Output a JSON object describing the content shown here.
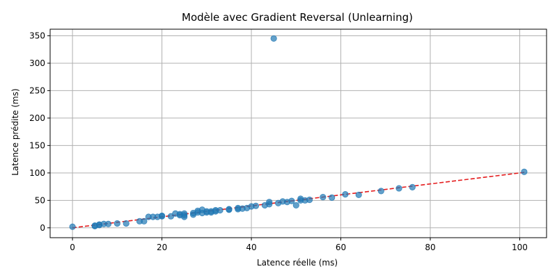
{
  "chart_data": {
    "type": "scatter",
    "title": "Modèle avec Gradient Reversal (Unlearning)",
    "xlabel": "Latence réelle (ms)",
    "ylabel": "Latence prédite (ms)",
    "xlim": [
      -5,
      106
    ],
    "ylim": [
      -18,
      362
    ],
    "xticks": [
      0,
      20,
      40,
      60,
      80,
      100
    ],
    "yticks": [
      0,
      50,
      100,
      150,
      200,
      250,
      300,
      350
    ],
    "grid": true,
    "point_color": "#1f77b4",
    "reference_line": {
      "x": [
        0,
        101
      ],
      "y": [
        0,
        101
      ],
      "color": "#e41a1c",
      "style": "dashed"
    },
    "points": [
      [
        0,
        2
      ],
      [
        5,
        4
      ],
      [
        5,
        3
      ],
      [
        6,
        5
      ],
      [
        6,
        6
      ],
      [
        7,
        7
      ],
      [
        8,
        7
      ],
      [
        10,
        8
      ],
      [
        12,
        8
      ],
      [
        15,
        12
      ],
      [
        16,
        12
      ],
      [
        17,
        20
      ],
      [
        18,
        20
      ],
      [
        19,
        20
      ],
      [
        20,
        21
      ],
      [
        20,
        22
      ],
      [
        22,
        21
      ],
      [
        23,
        26
      ],
      [
        24,
        25
      ],
      [
        24,
        23
      ],
      [
        25,
        26
      ],
      [
        25,
        20
      ],
      [
        25,
        23
      ],
      [
        27,
        24
      ],
      [
        27,
        27
      ],
      [
        28,
        28
      ],
      [
        28,
        31
      ],
      [
        29,
        27
      ],
      [
        29,
        33
      ],
      [
        30,
        28
      ],
      [
        30,
        30
      ],
      [
        31,
        30
      ],
      [
        31,
        28
      ],
      [
        32,
        30
      ],
      [
        32,
        32
      ],
      [
        33,
        32
      ],
      [
        35,
        33
      ],
      [
        35,
        34
      ],
      [
        37,
        34
      ],
      [
        37,
        36
      ],
      [
        38,
        35
      ],
      [
        39,
        36
      ],
      [
        40,
        39
      ],
      [
        41,
        40
      ],
      [
        43,
        41
      ],
      [
        44,
        47
      ],
      [
        44,
        43
      ],
      [
        45,
        345
      ],
      [
        46,
        45
      ],
      [
        47,
        48
      ],
      [
        48,
        47
      ],
      [
        49,
        49
      ],
      [
        50,
        41
      ],
      [
        51,
        50
      ],
      [
        51,
        53
      ],
      [
        52,
        50
      ],
      [
        53,
        51
      ],
      [
        56,
        56
      ],
      [
        58,
        55
      ],
      [
        61,
        61
      ],
      [
        64,
        60
      ],
      [
        69,
        67
      ],
      [
        73,
        72
      ],
      [
        76,
        74
      ],
      [
        101,
        102
      ]
    ]
  }
}
